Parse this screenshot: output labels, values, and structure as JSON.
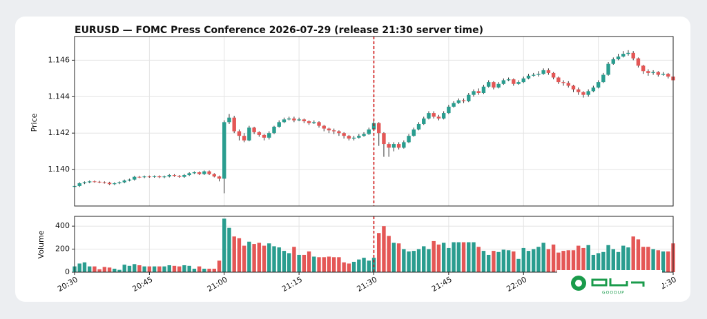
{
  "chart_data": {
    "type": "candlestick",
    "title": "EURUSD — FOMC Press Conference 2026-07-29 (release 21:30 server time)",
    "ylabel": "Price",
    "volume_label": "Volume",
    "event_time": "21:30",
    "up_color": "#2a9d8f",
    "down_color": "#e45756",
    "event_color": "#cc0000",
    "grid": true,
    "watermark": "GOODUP",
    "x": [
      "20:30",
      "20:31",
      "20:32",
      "20:33",
      "20:34",
      "20:35",
      "20:36",
      "20:37",
      "20:38",
      "20:39",
      "20:40",
      "20:41",
      "20:42",
      "20:43",
      "20:44",
      "20:45",
      "20:46",
      "20:47",
      "20:48",
      "20:49",
      "20:50",
      "20:51",
      "20:52",
      "20:53",
      "20:54",
      "20:55",
      "20:56",
      "20:57",
      "20:58",
      "20:59",
      "21:00",
      "21:01",
      "21:02",
      "21:03",
      "21:04",
      "21:05",
      "21:06",
      "21:07",
      "21:08",
      "21:09",
      "21:10",
      "21:11",
      "21:12",
      "21:13",
      "21:14",
      "21:15",
      "21:16",
      "21:17",
      "21:18",
      "21:19",
      "21:20",
      "21:21",
      "21:22",
      "21:23",
      "21:24",
      "21:25",
      "21:26",
      "21:27",
      "21:28",
      "21:29",
      "21:30",
      "21:31",
      "21:32",
      "21:33",
      "21:34",
      "21:35",
      "21:36",
      "21:37",
      "21:38",
      "21:39",
      "21:40",
      "21:41",
      "21:42",
      "21:43",
      "21:44",
      "21:45",
      "21:46",
      "21:47",
      "21:48",
      "21:49",
      "21:50",
      "21:51",
      "21:52",
      "21:53",
      "21:54",
      "21:55",
      "21:56",
      "21:57",
      "21:58",
      "21:59",
      "22:00",
      "22:01",
      "22:02",
      "22:03",
      "22:04",
      "22:05",
      "22:06",
      "22:07",
      "22:08",
      "22:09",
      "22:10",
      "22:11",
      "22:12",
      "22:13",
      "22:14",
      "22:15",
      "22:16",
      "22:17",
      "22:18",
      "22:19",
      "22:20",
      "22:21",
      "22:22",
      "22:23",
      "22:24",
      "22:25",
      "22:26",
      "22:27",
      "22:28",
      "22:29",
      "22:30"
    ],
    "open": [
      1.13905,
      1.1391,
      1.13925,
      1.1393,
      1.13935,
      1.13933,
      1.1393,
      1.13928,
      1.1392,
      1.13925,
      1.1393,
      1.1394,
      1.13945,
      1.1396,
      1.13958,
      1.13962,
      1.1396,
      1.13963,
      1.13958,
      1.13962,
      1.1397,
      1.13965,
      1.1396,
      1.1397,
      1.1398,
      1.13985,
      1.13975,
      1.1399,
      1.13975,
      1.13962,
      1.1395,
      1.1426,
      1.14285,
      1.1421,
      1.14185,
      1.1416,
      1.1423,
      1.14205,
      1.1419,
      1.14175,
      1.142,
      1.14235,
      1.1426,
      1.14275,
      1.1428,
      1.1427,
      1.14275,
      1.14265,
      1.14255,
      1.1426,
      1.1424,
      1.14225,
      1.14215,
      1.1421,
      1.142,
      1.14185,
      1.1417,
      1.14175,
      1.14185,
      1.14195,
      1.1422,
      1.14255,
      1.142,
      1.1414,
      1.1412,
      1.1414,
      1.1412,
      1.1415,
      1.14185,
      1.1422,
      1.1425,
      1.1428,
      1.1431,
      1.1429,
      1.1428,
      1.1431,
      1.14345,
      1.14365,
      1.1438,
      1.14375,
      1.1441,
      1.1443,
      1.1442,
      1.14455,
      1.1448,
      1.1445,
      1.1447,
      1.1449,
      1.14495,
      1.1447,
      1.1448,
      1.145,
      1.14515,
      1.1452,
      1.14525,
      1.14545,
      1.1453,
      1.14505,
      1.1448,
      1.14475,
      1.1446,
      1.1444,
      1.14425,
      1.1441,
      1.1443,
      1.1445,
      1.1448,
      1.1452,
      1.1458,
      1.14605,
      1.1462,
      1.14635,
      1.1464,
      1.1461,
      1.1457,
      1.1454,
      1.1453,
      1.14535,
      1.1452,
      1.14525,
      1.1451
    ],
    "high": [
      1.13915,
      1.1393,
      1.13935,
      1.1394,
      1.1394,
      1.13938,
      1.13935,
      1.13933,
      1.1393,
      1.13935,
      1.13945,
      1.1395,
      1.13965,
      1.13965,
      1.13967,
      1.13967,
      1.13968,
      1.13968,
      1.13967,
      1.13975,
      1.13975,
      1.1397,
      1.13975,
      1.13985,
      1.1399,
      1.1399,
      1.13995,
      1.13995,
      1.1398,
      1.13967,
      1.1427,
      1.14305,
      1.14295,
      1.1422,
      1.142,
      1.1424,
      1.14235,
      1.1421,
      1.14195,
      1.1421,
      1.1424,
      1.1427,
      1.14285,
      1.1429,
      1.1429,
      1.14285,
      1.1428,
      1.1427,
      1.1427,
      1.14265,
      1.14245,
      1.1423,
      1.14225,
      1.14215,
      1.14205,
      1.1419,
      1.14185,
      1.14195,
      1.14205,
      1.1423,
      1.14265,
      1.1426,
      1.14205,
      1.1415,
      1.1415,
      1.1415,
      1.1416,
      1.14195,
      1.1423,
      1.1426,
      1.1429,
      1.1432,
      1.1432,
      1.143,
      1.1432,
      1.14355,
      1.14375,
      1.1439,
      1.1439,
      1.1442,
      1.1444,
      1.14445,
      1.14465,
      1.1449,
      1.14485,
      1.1448,
      1.145,
      1.14505,
      1.145,
      1.1449,
      1.1451,
      1.14525,
      1.1453,
      1.1454,
      1.14555,
      1.14555,
      1.14535,
      1.1451,
      1.1449,
      1.14485,
      1.14465,
      1.1445,
      1.1443,
      1.1444,
      1.1446,
      1.1449,
      1.1453,
      1.1459,
      1.14615,
      1.14635,
      1.1465,
      1.14655,
      1.1465,
      1.14615,
      1.14575,
      1.1455,
      1.14545,
      1.1454,
      1.14535,
      1.1453,
      1.14525
    ],
    "low": [
      1.139,
      1.13905,
      1.1392,
      1.13925,
      1.13928,
      1.13925,
      1.13923,
      1.13915,
      1.13915,
      1.1392,
      1.13925,
      1.13935,
      1.1394,
      1.13953,
      1.13953,
      1.13955,
      1.13955,
      1.13953,
      1.13953,
      1.13957,
      1.1396,
      1.13955,
      1.13955,
      1.13965,
      1.13975,
      1.1397,
      1.1397,
      1.1397,
      1.13957,
      1.13935,
      1.1387,
      1.1425,
      1.142,
      1.1416,
      1.1415,
      1.14155,
      1.14195,
      1.1418,
      1.1416,
      1.14165,
      1.14195,
      1.1423,
      1.14255,
      1.1427,
      1.1426,
      1.14265,
      1.14255,
      1.14245,
      1.1425,
      1.1423,
      1.1421,
      1.142,
      1.14195,
      1.14185,
      1.1417,
      1.1416,
      1.1416,
      1.1417,
      1.1418,
      1.1419,
      1.14215,
      1.1413,
      1.1407,
      1.1407,
      1.141,
      1.1411,
      1.14115,
      1.14145,
      1.1418,
      1.14215,
      1.14245,
      1.14275,
      1.1428,
      1.1427,
      1.14275,
      1.14305,
      1.1434,
      1.1436,
      1.14365,
      1.1437,
      1.144,
      1.1441,
      1.14415,
      1.1445,
      1.1444,
      1.14445,
      1.14465,
      1.14485,
      1.1446,
      1.14465,
      1.14475,
      1.14495,
      1.1451,
      1.1451,
      1.1452,
      1.1452,
      1.14495,
      1.1447,
      1.1446,
      1.1445,
      1.14425,
      1.1441,
      1.14395,
      1.144,
      1.14425,
      1.14445,
      1.14475,
      1.14515,
      1.14575,
      1.146,
      1.14615,
      1.14625,
      1.146,
      1.1456,
      1.14525,
      1.14515,
      1.1452,
      1.1451,
      1.14515,
      1.145,
      1.1448
    ],
    "close": [
      1.1391,
      1.13925,
      1.1393,
      1.13935,
      1.13933,
      1.1393,
      1.13928,
      1.1392,
      1.13925,
      1.1393,
      1.1394,
      1.13945,
      1.1396,
      1.13958,
      1.13962,
      1.1396,
      1.13963,
      1.13958,
      1.13962,
      1.1397,
      1.13965,
      1.1396,
      1.1397,
      1.1398,
      1.13985,
      1.13975,
      1.1399,
      1.13975,
      1.13962,
      1.1395,
      1.1426,
      1.14285,
      1.1421,
      1.14185,
      1.1416,
      1.1423,
      1.14205,
      1.1419,
      1.14175,
      1.142,
      1.14235,
      1.1426,
      1.14275,
      1.1428,
      1.1427,
      1.14275,
      1.14265,
      1.14255,
      1.1426,
      1.1424,
      1.14225,
      1.14215,
      1.1421,
      1.142,
      1.14185,
      1.1417,
      1.14175,
      1.14185,
      1.14195,
      1.1422,
      1.14255,
      1.142,
      1.1414,
      1.1412,
      1.1414,
      1.1412,
      1.1415,
      1.14185,
      1.1422,
      1.1425,
      1.1428,
      1.1431,
      1.1429,
      1.1428,
      1.1431,
      1.14345,
      1.14365,
      1.1438,
      1.14375,
      1.1441,
      1.1443,
      1.1442,
      1.14455,
      1.1448,
      1.1445,
      1.1447,
      1.1449,
      1.14495,
      1.1447,
      1.1448,
      1.145,
      1.14515,
      1.1452,
      1.14525,
      1.14545,
      1.1453,
      1.14505,
      1.1448,
      1.14475,
      1.1446,
      1.1444,
      1.14425,
      1.1441,
      1.1443,
      1.1445,
      1.1448,
      1.1452,
      1.1458,
      1.14605,
      1.1462,
      1.14635,
      1.1464,
      1.1461,
      1.1457,
      1.1454,
      1.1453,
      1.14535,
      1.1452,
      1.14525,
      1.1451,
      1.1449
    ],
    "volume": [
      50,
      75,
      85,
      50,
      50,
      25,
      45,
      40,
      30,
      20,
      65,
      55,
      70,
      60,
      50,
      50,
      50,
      50,
      50,
      60,
      55,
      50,
      60,
      55,
      30,
      50,
      30,
      30,
      30,
      100,
      465,
      385,
      310,
      295,
      230,
      265,
      245,
      255,
      230,
      250,
      225,
      215,
      185,
      165,
      220,
      150,
      150,
      180,
      135,
      130,
      130,
      135,
      130,
      130,
      85,
      75,
      90,
      110,
      125,
      100,
      125,
      340,
      400,
      315,
      255,
      250,
      200,
      180,
      185,
      200,
      225,
      200,
      270,
      240,
      255,
      210,
      260,
      260,
      260,
      260,
      260,
      220,
      185,
      150,
      185,
      175,
      195,
      190,
      180,
      115,
      210,
      185,
      200,
      220,
      255,
      200,
      240,
      170,
      185,
      190,
      190,
      230,
      210,
      235,
      150,
      165,
      175,
      235,
      200,
      175,
      230,
      215,
      310,
      285,
      220,
      220,
      200,
      190,
      180,
      180,
      250
    ],
    "xticks": [
      "20:30",
      "20:45",
      "21:00",
      "21:15",
      "21:30",
      "21:45",
      "22:00",
      "22:15",
      "22:30"
    ],
    "ylim": [
      1.138,
      1.1473
    ],
    "yticks": [
      {
        "value": 1.14,
        "label": "1.140"
      },
      1.142,
      1.144,
      1.146
    ],
    "volume_ylim": [
      0,
      485
    ],
    "volume_yticks": [
      0,
      200,
      400
    ]
  }
}
